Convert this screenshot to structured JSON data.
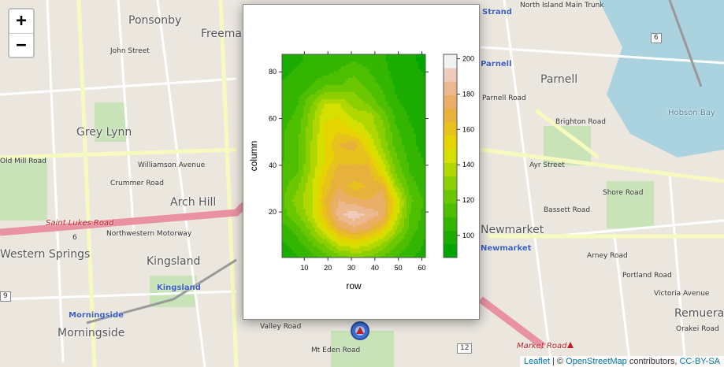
{
  "map": {
    "labels": [
      {
        "t": "Ponsonby",
        "c": "lbl"
      },
      {
        "t": "Freeman",
        "c": "lbl"
      },
      {
        "t": "Grey Lynn",
        "c": "lbl"
      },
      {
        "t": "Arch Hill",
        "c": "lbl"
      },
      {
        "t": "Kingsland",
        "c": "lbl"
      },
      {
        "t": "Western Springs",
        "c": "lbl"
      },
      {
        "t": "Morningside",
        "c": "lbl"
      },
      {
        "t": "Parnell",
        "c": "lbl"
      },
      {
        "t": "Newmarket",
        "c": "lbl"
      },
      {
        "t": "Remuera",
        "c": "lbl"
      },
      {
        "t": "Hobson Bay",
        "c": "lbl"
      }
    ],
    "streets": [
      "John Street",
      "Williamson Avenue",
      "Crummer Road",
      "Old Mill Road",
      "Northwestern Motorway",
      "Parnell Road",
      "Brighton Road",
      "Ayr Street",
      "Shore Road",
      "Bassett Road",
      "Arney Road",
      "Portland Road",
      "Victoria Avenue",
      "Orakei Road",
      "Valley Road",
      "Mt Eden Road",
      "North Island Main Trunk",
      "Market Road"
    ],
    "stations": [
      "Kingsland",
      "Morningside",
      "Newmarket",
      "Parnell",
      "Strand"
    ],
    "red_labels": [
      "Saint Lukes Road",
      "Market Road"
    ],
    "route_numbers": [
      "6",
      "6",
      "9",
      "12"
    ]
  },
  "controls": {
    "zoom_in": "+",
    "zoom_out": "−"
  },
  "attribution": {
    "leaflet": "Leaflet",
    "sep": " | © ",
    "osm": "OpenStreetMap",
    "contrib": " contributors, ",
    "license": "CC-BY-SA"
  },
  "chart_data": {
    "type": "heatmap",
    "xlabel": "row",
    "ylabel": "column",
    "xlim": [
      0.5,
      61.5
    ],
    "ylim": [
      0.5,
      87.5
    ],
    "xticks": [
      10,
      20,
      30,
      40,
      50,
      60
    ],
    "yticks": [
      20,
      40,
      60,
      80
    ],
    "colorkey": {
      "ticks": [
        100,
        120,
        140,
        160,
        180,
        200
      ],
      "range": [
        87.5,
        202.5
      ],
      "bands": 15,
      "colors": [
        "#00a600",
        "#1aad00",
        "#33b600",
        "#4dbf00",
        "#6ac700",
        "#8ccf00",
        "#b0d800",
        "#d5e000",
        "#e6d400",
        "#e7c21d",
        "#e8b13c",
        "#eaaf66",
        "#ecb890",
        "#efcbbe",
        "#f2f2f2"
      ]
    },
    "grid_x": [
      1,
      7,
      13,
      19,
      25,
      31,
      37,
      43,
      49,
      55,
      61
    ],
    "grid_y": [
      1,
      7,
      13,
      19,
      25,
      31,
      37,
      43,
      49,
      55,
      61,
      67,
      73,
      79,
      85
    ],
    "z_by_column": [
      [
        98,
        102,
        108,
        115,
        122,
        128,
        125,
        118,
        110,
        104,
        100
      ],
      [
        102,
        108,
        118,
        130,
        145,
        150,
        145,
        135,
        120,
        110,
        102
      ],
      [
        108,
        115,
        130,
        150,
        170,
        178,
        172,
        160,
        135,
        115,
        106
      ],
      [
        115,
        125,
        140,
        162,
        185,
        192,
        185,
        178,
        145,
        118,
        108
      ],
      [
        118,
        130,
        140,
        165,
        180,
        175,
        172,
        178,
        150,
        120,
        110
      ],
      [
        115,
        125,
        140,
        160,
        172,
        160,
        165,
        170,
        135,
        115,
        106
      ],
      [
        112,
        118,
        136,
        155,
        170,
        170,
        170,
        150,
        125,
        110,
        104
      ],
      [
        110,
        116,
        134,
        150,
        160,
        160,
        160,
        140,
        120,
        108,
        102
      ],
      [
        110,
        116,
        134,
        150,
        165,
        168,
        150,
        132,
        115,
        105,
        100
      ],
      [
        110,
        115,
        132,
        150,
        155,
        150,
        140,
        130,
        112,
        104,
        100
      ],
      [
        108,
        112,
        130,
        148,
        148,
        138,
        138,
        125,
        108,
        102,
        98
      ],
      [
        106,
        110,
        125,
        140,
        140,
        130,
        124,
        114,
        104,
        100,
        97
      ],
      [
        104,
        106,
        112,
        120,
        120,
        124,
        118,
        110,
        102,
        98,
        96
      ],
      [
        102,
        104,
        106,
        110,
        112,
        118,
        112,
        106,
        100,
        97,
        95
      ],
      [
        100,
        102,
        104,
        106,
        108,
        110,
        108,
        104,
        100,
        96,
        94
      ]
    ]
  }
}
